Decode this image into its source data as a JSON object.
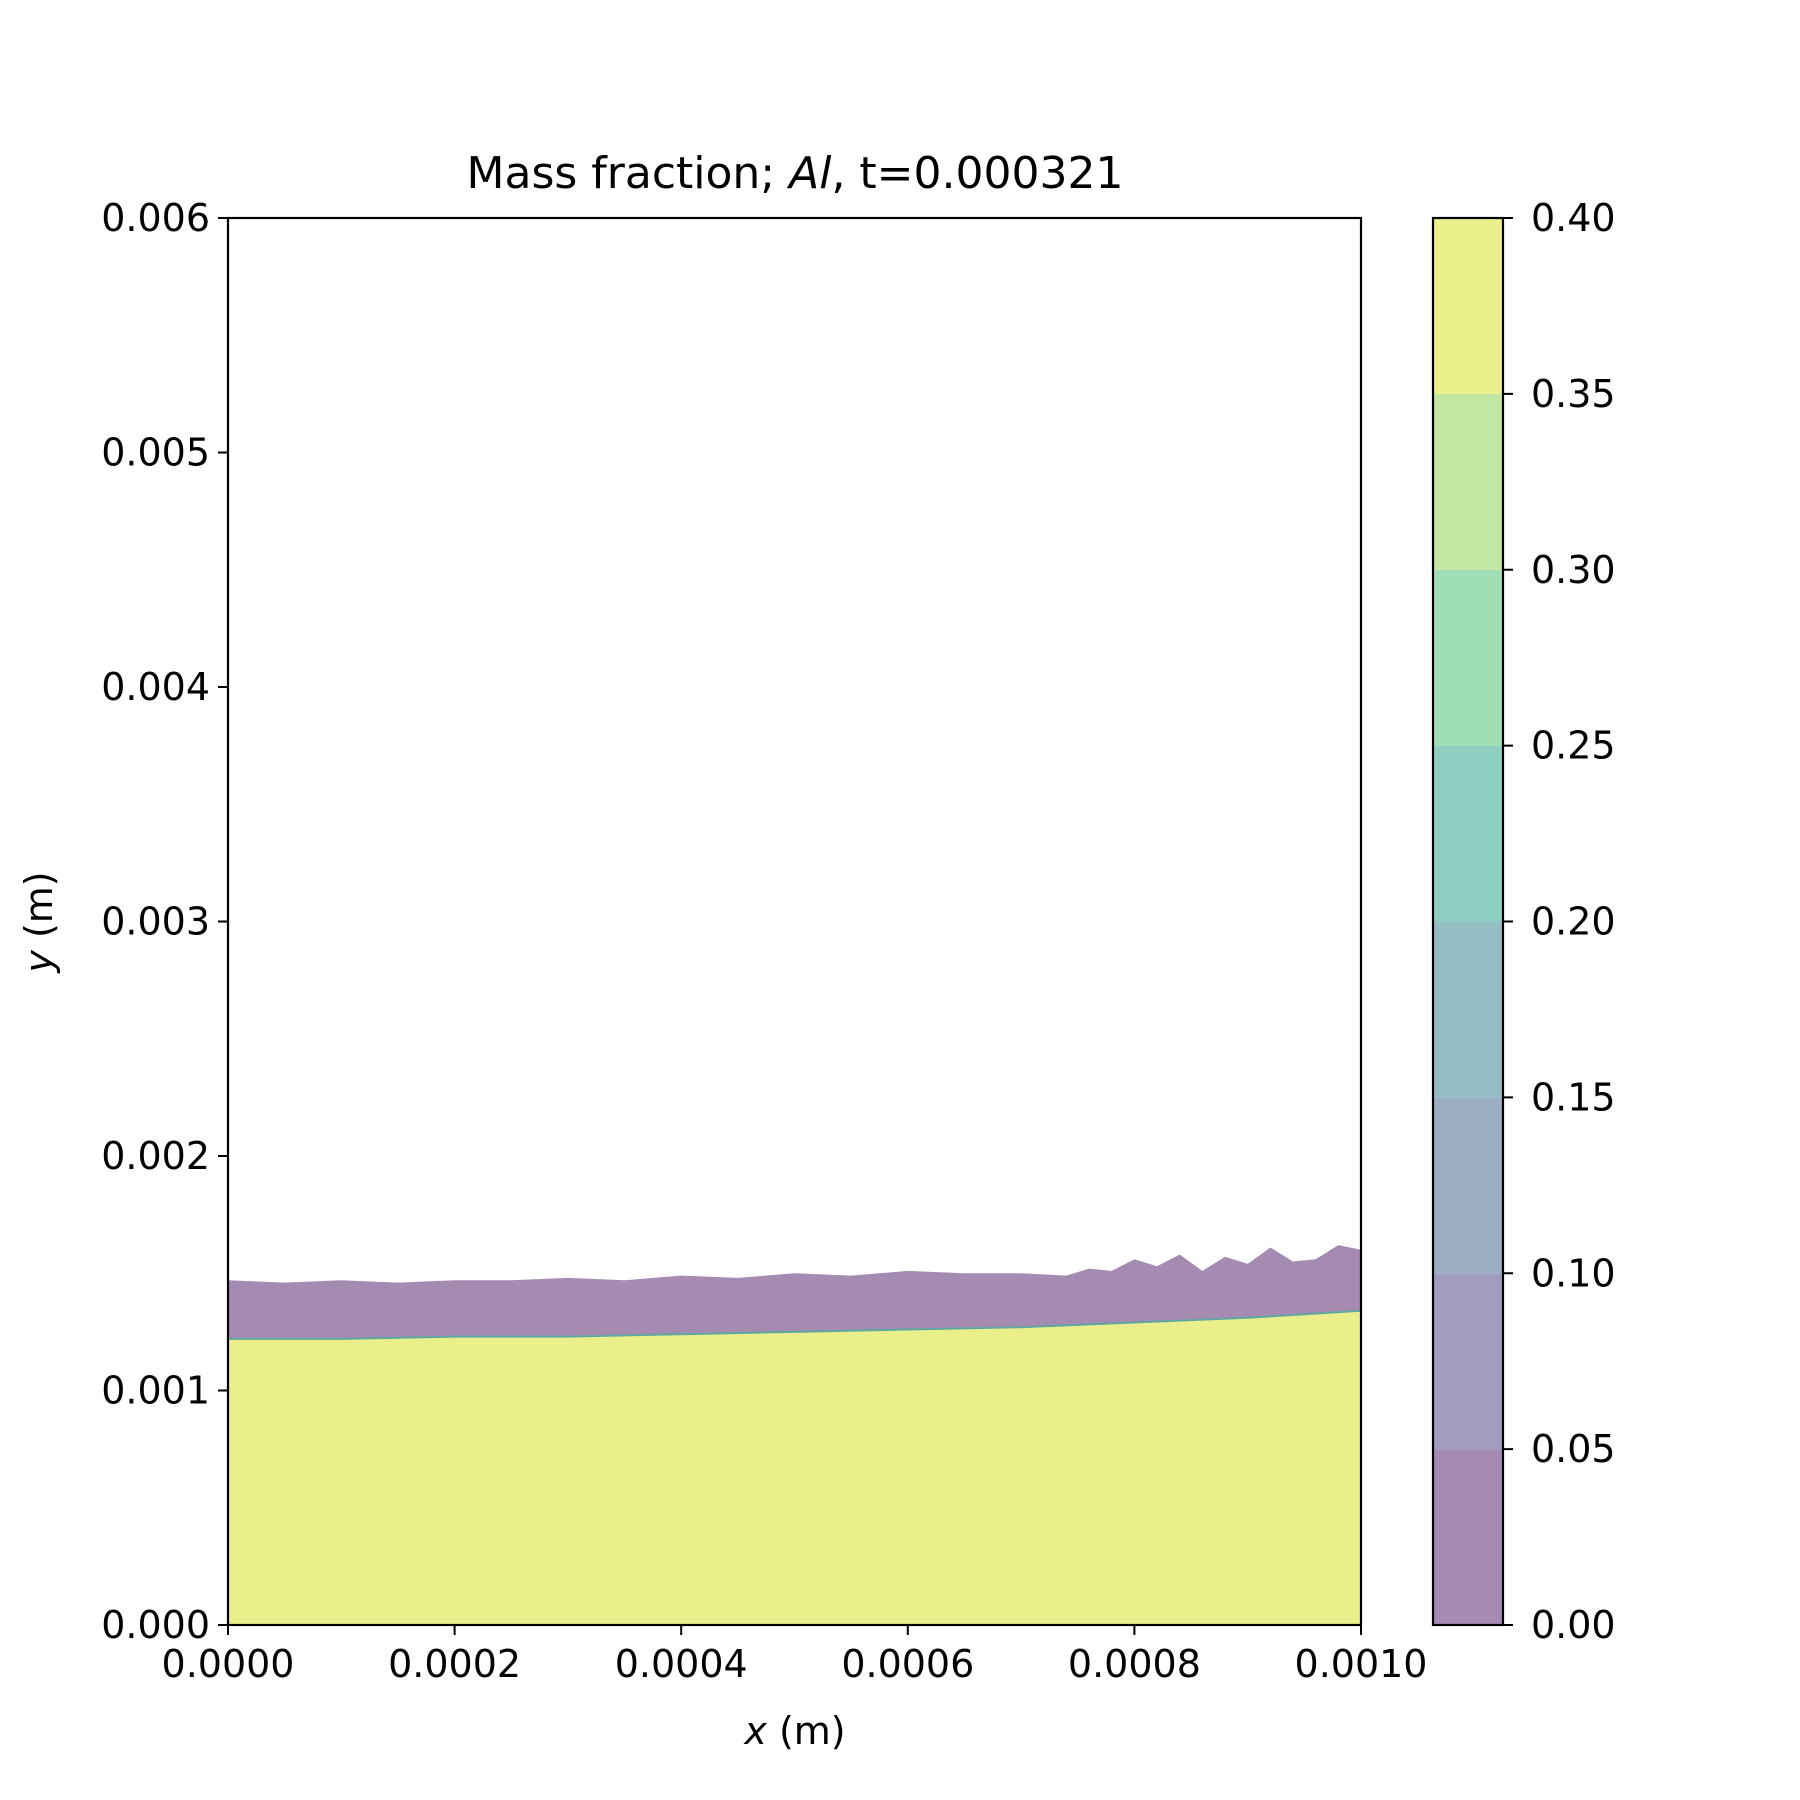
{
  "chart_data": {
    "type": "contour",
    "title": {
      "prefix": "Mass fraction; ",
      "species": "Al",
      "suffix": ", t=0.000321"
    },
    "xlabel": {
      "var": "x",
      "unit": " (m)"
    },
    "ylabel": {
      "var": "y",
      "unit": " (m)"
    },
    "xlim": [
      0.0,
      0.001
    ],
    "ylim": [
      0.0,
      0.006
    ],
    "xticks": [
      "0.0000",
      "0.0002",
      "0.0004",
      "0.0006",
      "0.0008",
      "0.0010"
    ],
    "xtick_values": [
      0.0,
      0.0002,
      0.0004,
      0.0006,
      0.0008,
      0.001
    ],
    "yticks": [
      "0.000",
      "0.001",
      "0.002",
      "0.003",
      "0.004",
      "0.005",
      "0.006"
    ],
    "ytick_values": [
      0.0,
      0.001,
      0.002,
      0.003,
      0.004,
      0.005,
      0.006
    ],
    "colorbar": {
      "levels": [
        0.0,
        0.05,
        0.1,
        0.15,
        0.2,
        0.25,
        0.3,
        0.35,
        0.4
      ],
      "tick_labels": [
        "0.00",
        "0.05",
        "0.10",
        "0.15",
        "0.20",
        "0.25",
        "0.30",
        "0.35",
        "0.40"
      ],
      "band_colors": [
        "#a58ab2",
        "#a19dbe",
        "#9baec4",
        "#95bdc4",
        "#8fcfc1",
        "#a0deb6",
        "#c3e6a3",
        "#ebef8b"
      ]
    },
    "regions": [
      {
        "name": "Al-rich lower layer",
        "mass_fraction": "0.35-0.40",
        "color": "#ebef8b",
        "top_boundary": {
          "x": [
            0.0,
            0.0001,
            0.0002,
            0.0003,
            0.0004,
            0.0005,
            0.0006,
            0.0007,
            0.0008,
            0.0009,
            0.001
          ],
          "y": [
            0.00122,
            0.00122,
            0.00123,
            0.00123,
            0.00124,
            0.00125,
            0.00126,
            0.00127,
            0.00129,
            0.00131,
            0.00134
          ]
        }
      },
      {
        "name": "Al-poor upper layer",
        "mass_fraction": "0.00-0.05",
        "color": "#a58ab2",
        "top_boundary": {
          "x": [
            0.0,
            5e-05,
            0.0001,
            0.00015,
            0.0002,
            0.00025,
            0.0003,
            0.00035,
            0.0004,
            0.00045,
            0.0005,
            0.00055,
            0.0006,
            0.00065,
            0.0007,
            0.00074,
            0.00076,
            0.00078,
            0.0008,
            0.00082,
            0.00084,
            0.00086,
            0.00088,
            0.0009,
            0.00092,
            0.00094,
            0.00096,
            0.00098,
            0.001
          ],
          "y": [
            0.00147,
            0.00146,
            0.00147,
            0.00146,
            0.00147,
            0.00147,
            0.00148,
            0.00147,
            0.00149,
            0.00148,
            0.0015,
            0.00149,
            0.00151,
            0.0015,
            0.0015,
            0.00149,
            0.00152,
            0.00151,
            0.00156,
            0.00153,
            0.00158,
            0.00151,
            0.00157,
            0.00154,
            0.00161,
            0.00155,
            0.00156,
            0.00162,
            0.0016
          ]
        }
      }
    ],
    "interface_color": "#5fa7a0",
    "grid": false,
    "legend": "colorbar-right"
  }
}
